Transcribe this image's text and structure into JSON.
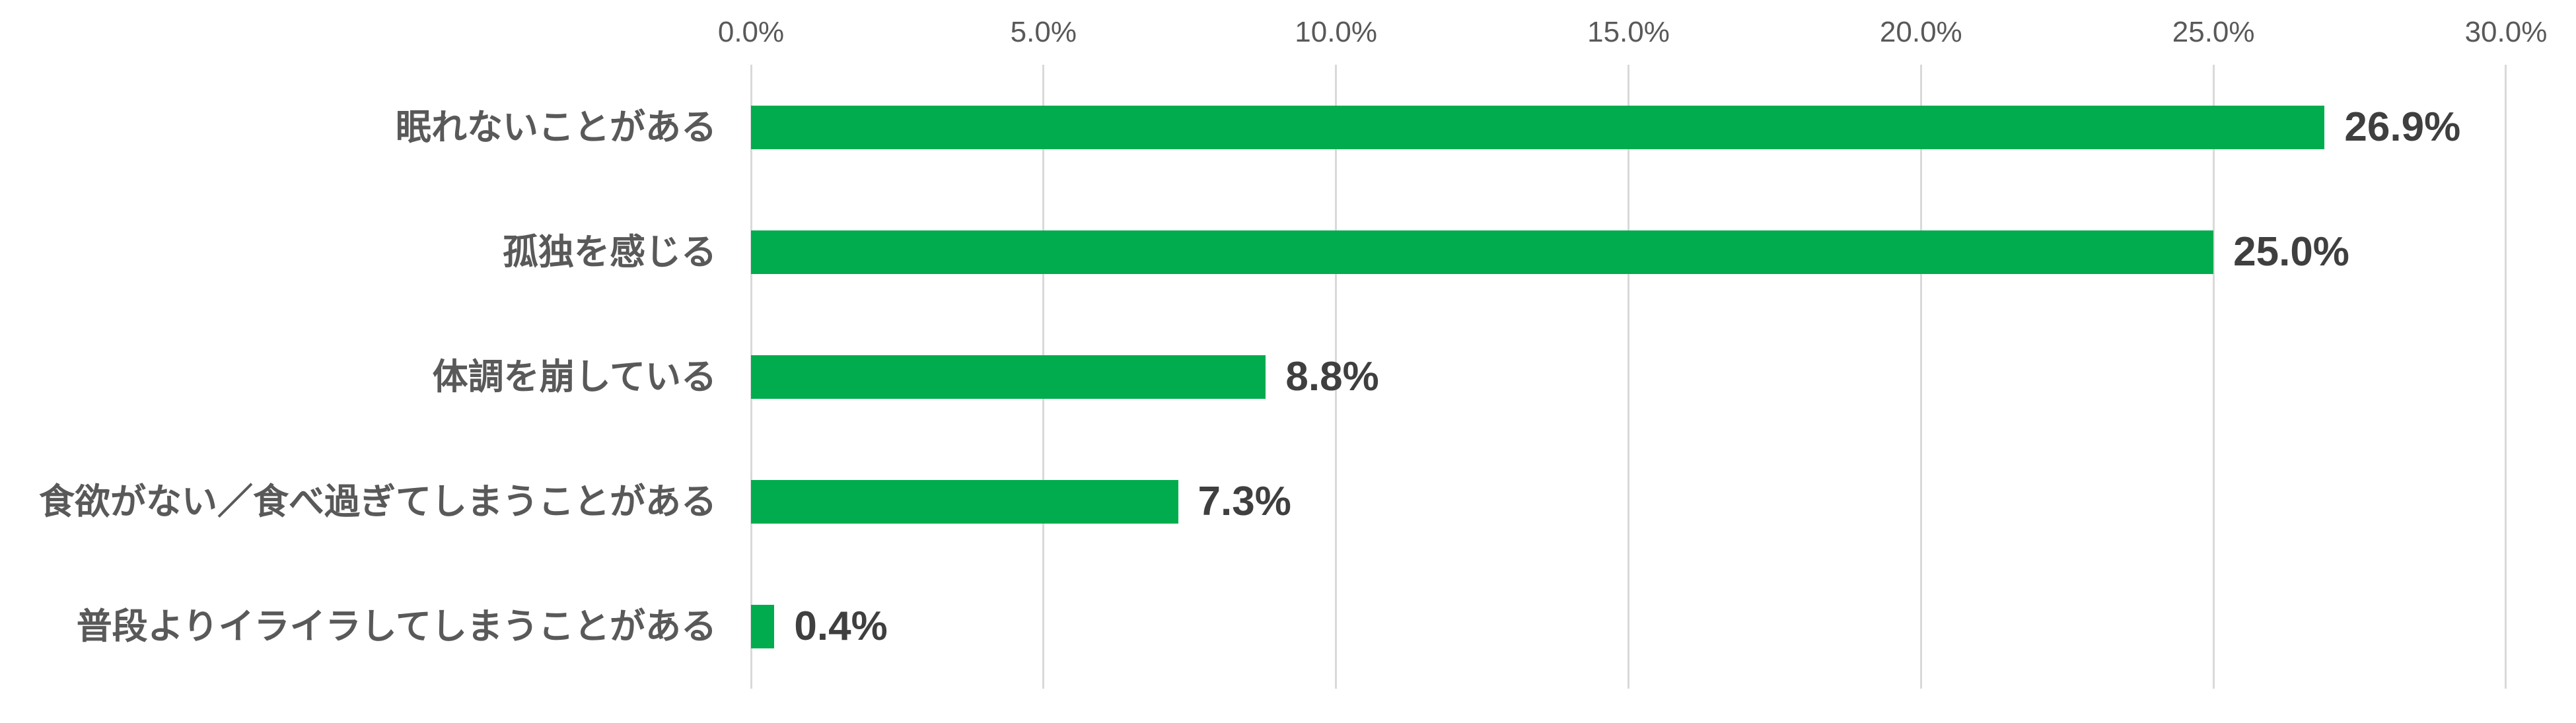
{
  "chart_data": {
    "type": "bar",
    "orientation": "horizontal",
    "title": "",
    "categories": [
      "眠れないことがある",
      "孤独を感じる",
      "体調を崩している",
      "食欲がない／食べ過ぎてしまうことがある",
      "普段よりイライラしてしまうことがある"
    ],
    "values": [
      26.9,
      25.0,
      8.8,
      7.3,
      0.4
    ],
    "value_labels": [
      "26.9%",
      "25.0%",
      "8.8%",
      "7.3%",
      "0.4%"
    ],
    "x_axis": {
      "position": "top",
      "ticks": [
        0,
        5,
        10,
        15,
        20,
        25,
        30
      ],
      "tick_labels": [
        "0.0%",
        "5.0%",
        "10.0%",
        "15.0%",
        "20.0%",
        "25.0%",
        "30.0%"
      ],
      "xlim": [
        0,
        30
      ]
    },
    "grid": true,
    "legend": "none",
    "colors": {
      "bar": "#00AC4E",
      "category_label": "#595959",
      "value_label": "#3F3F3F",
      "axis_tick_label": "#595959",
      "gridline": "#D9D9D9",
      "background": "#FFFFFF"
    }
  }
}
